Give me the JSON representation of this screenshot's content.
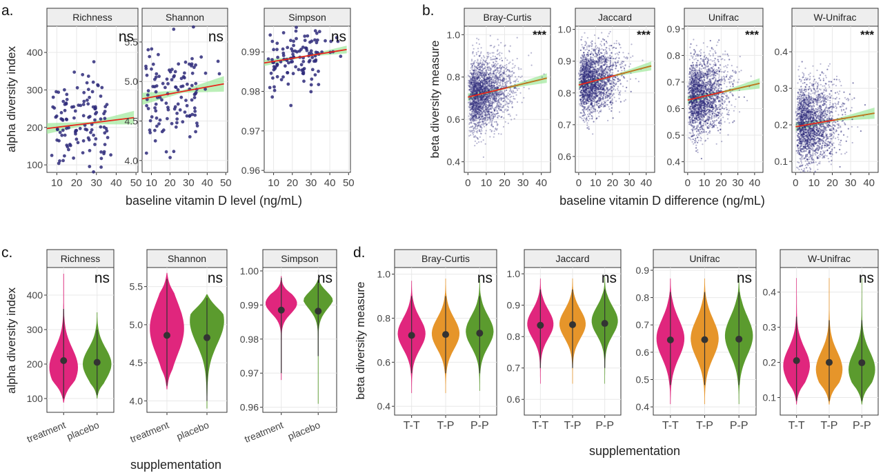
{
  "colors": {
    "point": "#2e2a7a",
    "fit": "#e8261c",
    "ci": "#9ee89a",
    "treatment": "#e0267d",
    "placebo": "#5b9b2e",
    "mixed": "#e6952a",
    "stat": "#333333",
    "strip": "#eeeeee",
    "grid": "#e8e8e8"
  },
  "panels": [
    {
      "label": "a.",
      "type": "scatter",
      "xlabel": "baseline vitamin D level (ng/mL)",
      "ylabel": "alpha diversity index",
      "xticks": [
        10,
        20,
        30,
        40,
        50
      ],
      "facets": [
        {
          "name": "Richness",
          "ylim": [
            80,
            470
          ],
          "yticks": [
            100,
            200,
            300,
            400
          ],
          "ytick_labels": [
            "100",
            "200",
            "300",
            "400"
          ],
          "signif": "ns",
          "fit": [
            [
              5,
              197
            ],
            [
              49,
              226
            ]
          ],
          "n": 120,
          "center": 210,
          "spread": 65
        },
        {
          "name": "Shannon",
          "ylim": [
            3.85,
            5.7
          ],
          "yticks": [
            4.0,
            4.5,
            5.0,
            5.5
          ],
          "ytick_labels": [
            "4.0",
            "4.5",
            "5.0",
            "5.5"
          ],
          "signif": "ns",
          "fit": [
            [
              5,
              4.78
            ],
            [
              49,
              4.97
            ]
          ],
          "n": 120,
          "center": 4.85,
          "spread": 0.35
        },
        {
          "name": "Simpson",
          "ylim": [
            0.9595,
            0.9965
          ],
          "yticks": [
            0.96,
            0.97,
            0.98,
            0.99
          ],
          "ytick_labels": [
            "0.96",
            "0.97",
            "0.98",
            "0.99"
          ],
          "signif": "ns",
          "fit": [
            [
              5,
              0.9872
            ],
            [
              49,
              0.9906
            ]
          ],
          "n": 120,
          "center": 0.9885,
          "spread": 0.0035
        }
      ]
    },
    {
      "label": "b.",
      "type": "scatter",
      "xlabel": "baseline vitamin D difference (ng/mL)",
      "ylabel": "beta diversity measure",
      "xticks": [
        0,
        10,
        20,
        30,
        40
      ],
      "facets": [
        {
          "name": "Bray-Curtis",
          "ylim": [
            0.35,
            1.04
          ],
          "yticks": [
            0.4,
            0.6,
            0.8,
            1.0
          ],
          "ytick_labels": [
            "0.4",
            "0.6",
            "0.8",
            "1.0"
          ],
          "signif": "***",
          "fit": [
            [
              0,
              0.705
            ],
            [
              43,
              0.795
            ]
          ],
          "center": 0.72,
          "spread": 0.08
        },
        {
          "name": "Jaccard",
          "ylim": [
            0.55,
            1.01
          ],
          "yticks": [
            0.6,
            0.7,
            0.8,
            0.9,
            1.0
          ],
          "ytick_labels": [
            "0.6",
            "0.7",
            "0.8",
            "0.9",
            "1.0"
          ],
          "signif": "***",
          "fit": [
            [
              0,
              0.825
            ],
            [
              43,
              0.885
            ]
          ],
          "center": 0.835,
          "spread": 0.05
        },
        {
          "name": "Unifrac",
          "ylim": [
            0.36,
            0.91
          ],
          "yticks": [
            0.4,
            0.5,
            0.6,
            0.7,
            0.8,
            0.9
          ],
          "ytick_labels": [
            "0.4",
            "0.5",
            "0.6",
            "0.7",
            "0.8",
            "0.9"
          ],
          "signif": "***",
          "fit": [
            [
              0,
              0.632
            ],
            [
              43,
              0.695
            ]
          ],
          "center": 0.64,
          "spread": 0.07
        },
        {
          "name": "W-Unifrac",
          "ylim": [
            0.07,
            0.47
          ],
          "yticks": [
            0.1,
            0.2,
            0.3,
            0.4
          ],
          "ytick_labels": [
            "0.1",
            "0.2",
            "0.3",
            "0.4"
          ],
          "signif": "***",
          "fit": [
            [
              0,
              0.195
            ],
            [
              43,
              0.232
            ]
          ],
          "center": 0.19,
          "spread": 0.055
        }
      ]
    },
    {
      "label": "c.",
      "type": "violin",
      "xlabel": "supplementation",
      "ylabel": "alpha diversity index",
      "categories": [
        "treatment",
        "placebo"
      ],
      "facets": [
        {
          "name": "Richness",
          "ylim": [
            60,
            480
          ],
          "yticks": [
            100,
            200,
            300,
            400
          ],
          "ytick_labels": [
            "100",
            "200",
            "300",
            "400"
          ],
          "signif": "ns",
          "groups": [
            {
              "cat": "treatment",
              "color": "treatment",
              "median": 210,
              "lo": 88,
              "hi": 462,
              "wlo": 100,
              "whi": 360,
              "peak": 190,
              "sd": 55
            },
            {
              "cat": "placebo",
              "color": "placebo",
              "median": 205,
              "lo": 100,
              "hi": 350,
              "wlo": 110,
              "whi": 300,
              "peak": 200,
              "sd": 45
            }
          ]
        },
        {
          "name": "Shannon",
          "ylim": [
            3.85,
            5.75
          ],
          "yticks": [
            4.0,
            4.5,
            5.0,
            5.5
          ],
          "ytick_labels": [
            "4.0",
            "4.5",
            "5.0",
            "5.5"
          ],
          "signif": "ns",
          "groups": [
            {
              "cat": "treatment",
              "color": "treatment",
              "median": 4.86,
              "lo": 4.15,
              "hi": 5.68,
              "wlo": 4.2,
              "whi": 5.6,
              "peak": 4.95,
              "sd": 0.35
            },
            {
              "cat": "placebo",
              "color": "placebo",
              "median": 4.83,
              "lo": 3.9,
              "hi": 5.4,
              "wlo": 4.0,
              "whi": 5.35,
              "peak": 5.05,
              "sd": 0.3
            }
          ]
        },
        {
          "name": "Simpson",
          "ylim": [
            0.9585,
            1.001
          ],
          "yticks": [
            0.96,
            0.97,
            0.98,
            0.99,
            1.0
          ],
          "ytick_labels": [
            "0.96",
            "0.97",
            "0.98",
            "0.99",
            "1.00"
          ],
          "signif": "ns",
          "groups": [
            {
              "cat": "treatment",
              "color": "treatment",
              "median": 0.9885,
              "lo": 0.968,
              "hi": 0.9985,
              "wlo": 0.97,
              "whi": 0.998,
              "peak": 0.9905,
              "sd": 0.003
            },
            {
              "cat": "placebo",
              "color": "placebo",
              "median": 0.9882,
              "lo": 0.961,
              "hi": 0.9975,
              "wlo": 0.975,
              "whi": 0.997,
              "peak": 0.9925,
              "sd": 0.0035
            }
          ]
        }
      ]
    },
    {
      "label": "d.",
      "type": "violin",
      "xlabel": "supplementation",
      "ylabel": "beta diversity measure",
      "categories": [
        "T-T",
        "T-P",
        "P-P"
      ],
      "facets": [
        {
          "name": "Bray-Curtis",
          "ylim": [
            0.36,
            1.03
          ],
          "yticks": [
            0.4,
            0.6,
            0.8,
            1.0
          ],
          "ytick_labels": [
            "0.4",
            "0.6",
            "0.8",
            "1.0"
          ],
          "signif": "ns",
          "groups": [
            {
              "cat": "T-T",
              "color": "treatment",
              "median": 0.722,
              "lo": 0.46,
              "hi": 0.97,
              "wlo": 0.55,
              "whi": 0.9,
              "peak": 0.73,
              "sd": 0.07
            },
            {
              "cat": "T-P",
              "color": "mixed",
              "median": 0.726,
              "lo": 0.46,
              "hi": 0.98,
              "wlo": 0.55,
              "whi": 0.9,
              "peak": 0.73,
              "sd": 0.07
            },
            {
              "cat": "P-P",
              "color": "placebo",
              "median": 0.732,
              "lo": 0.47,
              "hi": 0.98,
              "wlo": 0.55,
              "whi": 0.9,
              "peak": 0.74,
              "sd": 0.07
            }
          ]
        },
        {
          "name": "Jaccard",
          "ylim": [
            0.55,
            1.02
          ],
          "yticks": [
            0.6,
            0.7,
            0.8,
            0.9,
            1.0
          ],
          "ytick_labels": [
            "0.6",
            "0.7",
            "0.8",
            "0.9",
            "1.0"
          ],
          "signif": "ns",
          "groups": [
            {
              "cat": "T-T",
              "color": "treatment",
              "median": 0.836,
              "lo": 0.65,
              "hi": 0.985,
              "wlo": 0.7,
              "whi": 0.95,
              "peak": 0.84,
              "sd": 0.045
            },
            {
              "cat": "T-P",
              "color": "mixed",
              "median": 0.838,
              "lo": 0.65,
              "hi": 0.985,
              "wlo": 0.7,
              "whi": 0.95,
              "peak": 0.84,
              "sd": 0.045
            },
            {
              "cat": "P-P",
              "color": "placebo",
              "median": 0.842,
              "lo": 0.65,
              "hi": 0.99,
              "wlo": 0.7,
              "whi": 0.95,
              "peak": 0.85,
              "sd": 0.045
            }
          ]
        },
        {
          "name": "Unifrac",
          "ylim": [
            0.37,
            0.91
          ],
          "yticks": [
            0.4,
            0.5,
            0.6,
            0.7,
            0.8,
            0.9
          ],
          "ytick_labels": [
            "0.4",
            "0.5",
            "0.6",
            "0.7",
            "0.8",
            "0.9"
          ],
          "signif": "ns",
          "groups": [
            {
              "cat": "T-T",
              "color": "treatment",
              "median": 0.645,
              "lo": 0.41,
              "hi": 0.87,
              "wlo": 0.48,
              "whi": 0.82,
              "peak": 0.65,
              "sd": 0.07
            },
            {
              "cat": "T-P",
              "color": "mixed",
              "median": 0.646,
              "lo": 0.41,
              "hi": 0.87,
              "wlo": 0.48,
              "whi": 0.82,
              "peak": 0.65,
              "sd": 0.07
            },
            {
              "cat": "P-P",
              "color": "placebo",
              "median": 0.648,
              "lo": 0.41,
              "hi": 0.87,
              "wlo": 0.48,
              "whi": 0.82,
              "peak": 0.66,
              "sd": 0.07
            }
          ]
        },
        {
          "name": "W-Unifrac",
          "ylim": [
            0.05,
            0.47
          ],
          "yticks": [
            0.1,
            0.2,
            0.3,
            0.4
          ],
          "ytick_labels": [
            "0.1",
            "0.2",
            "0.3",
            "0.4"
          ],
          "signif": "ns",
          "groups": [
            {
              "cat": "T-T",
              "color": "treatment",
              "median": 0.205,
              "lo": 0.08,
              "hi": 0.44,
              "wlo": 0.09,
              "whi": 0.33,
              "peak": 0.19,
              "sd": 0.05
            },
            {
              "cat": "T-P",
              "color": "mixed",
              "median": 0.2,
              "lo": 0.08,
              "hi": 0.44,
              "wlo": 0.09,
              "whi": 0.32,
              "peak": 0.18,
              "sd": 0.05
            },
            {
              "cat": "P-P",
              "color": "placebo",
              "median": 0.199,
              "lo": 0.08,
              "hi": 0.44,
              "wlo": 0.09,
              "whi": 0.32,
              "peak": 0.18,
              "sd": 0.05
            }
          ]
        }
      ]
    }
  ],
  "chart_data": [
    {
      "type": "scatter",
      "label": "a.",
      "xlabel": "baseline vitamin D level (ng/mL)",
      "ylabel": "alpha diversity index",
      "facets": [
        "Richness",
        "Shannon",
        "Simpson"
      ],
      "xlim": [
        5,
        50
      ],
      "fit_lines": {
        "Richness": [
          [
            5,
            197
          ],
          [
            49,
            226
          ]
        ],
        "Shannon": [
          [
            5,
            4.78
          ],
          [
            49,
            4.97
          ]
        ],
        "Simpson": [
          [
            5,
            0.9872
          ],
          [
            49,
            0.9906
          ]
        ]
      },
      "significance": [
        "ns",
        "ns",
        "ns"
      ]
    },
    {
      "type": "scatter",
      "label": "b.",
      "xlabel": "baseline vitamin D difference (ng/mL)",
      "ylabel": "beta diversity measure",
      "facets": [
        "Bray-Curtis",
        "Jaccard",
        "Unifrac",
        "W-Unifrac"
      ],
      "xlim": [
        0,
        43
      ],
      "fit_lines": {
        "Bray-Curtis": [
          [
            0,
            0.705
          ],
          [
            43,
            0.795
          ]
        ],
        "Jaccard": [
          [
            0,
            0.825
          ],
          [
            43,
            0.885
          ]
        ],
        "Unifrac": [
          [
            0,
            0.632
          ],
          [
            43,
            0.695
          ]
        ],
        "W-Unifrac": [
          [
            0,
            0.195
          ],
          [
            43,
            0.232
          ]
        ]
      },
      "significance": [
        "***",
        "***",
        "***",
        "***"
      ]
    },
    {
      "type": "violin",
      "label": "c.",
      "xlabel": "supplementation",
      "ylabel": "alpha diversity index",
      "categories": [
        "treatment",
        "placebo"
      ],
      "medians": {
        "Richness": [
          210,
          205
        ],
        "Shannon": [
          4.86,
          4.83
        ],
        "Simpson": [
          0.9885,
          0.9882
        ]
      },
      "significance": [
        "ns",
        "ns",
        "ns"
      ]
    },
    {
      "type": "violin",
      "label": "d.",
      "xlabel": "supplementation",
      "ylabel": "beta diversity measure",
      "categories": [
        "T-T",
        "T-P",
        "P-P"
      ],
      "medians": {
        "Bray-Curtis": [
          0.722,
          0.726,
          0.732
        ],
        "Jaccard": [
          0.836,
          0.838,
          0.842
        ],
        "Unifrac": [
          0.645,
          0.646,
          0.648
        ],
        "W-Unifrac": [
          0.205,
          0.2,
          0.199
        ]
      },
      "significance": [
        "ns",
        "ns",
        "ns",
        "ns"
      ]
    }
  ]
}
